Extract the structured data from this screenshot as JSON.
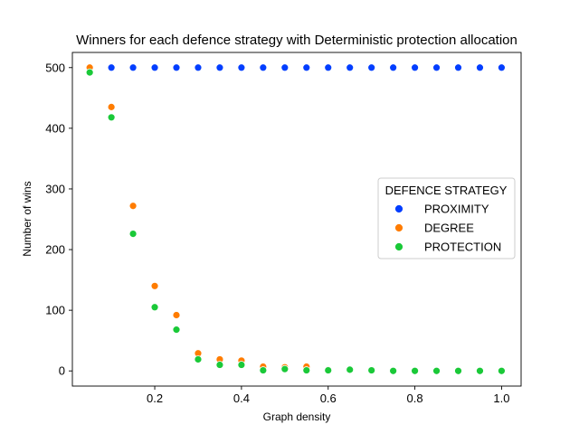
{
  "chart_data": {
    "type": "scatter",
    "title": "Winners for each defence strategy with Deterministic protection allocation",
    "xlabel": "Graph density",
    "ylabel": "Number of wins",
    "xlim": [
      0.01,
      1.045
    ],
    "ylim": [
      -25,
      525
    ],
    "xticks": [
      0.2,
      0.4,
      0.6,
      0.8,
      1.0
    ],
    "xtick_labels": [
      "0.2",
      "0.4",
      "0.6",
      "0.8",
      "1.0"
    ],
    "yticks": [
      0,
      100,
      200,
      300,
      400,
      500
    ],
    "ytick_labels": [
      "0",
      "100",
      "200",
      "300",
      "400",
      "500"
    ],
    "grid": false,
    "legend": {
      "title": "DEFENCE STRATEGY",
      "placement": "center-right"
    },
    "x": [
      0.05,
      0.1,
      0.15,
      0.2,
      0.25,
      0.3,
      0.35,
      0.4,
      0.45,
      0.5,
      0.55,
      0.6,
      0.65,
      0.7,
      0.75,
      0.8,
      0.85,
      0.9,
      0.95,
      1.0
    ],
    "series": [
      {
        "name": "PROXIMITY",
        "color": "#023eff",
        "values": [
          500,
          500,
          500,
          500,
          500,
          500,
          500,
          500,
          500,
          500,
          500,
          500,
          500,
          500,
          500,
          500,
          500,
          500,
          500,
          500
        ]
      },
      {
        "name": "DEGREE",
        "color": "#ff7c00",
        "values": [
          500,
          435,
          272,
          140,
          92,
          29,
          19,
          17,
          7,
          6,
          7,
          2,
          2,
          1,
          0,
          0,
          0,
          0,
          0,
          0
        ]
      },
      {
        "name": "PROTECTION",
        "color": "#1ac938",
        "values": [
          492,
          418,
          226,
          105,
          68,
          19,
          10,
          10,
          1,
          3,
          1,
          1,
          2,
          1,
          0,
          0,
          0,
          0,
          0,
          0
        ]
      }
    ]
  }
}
